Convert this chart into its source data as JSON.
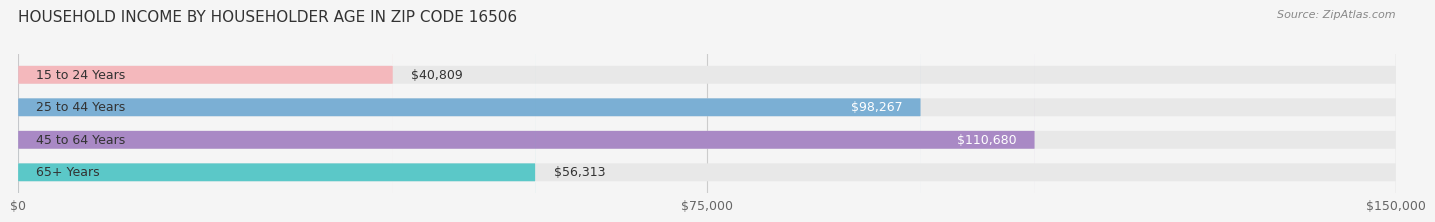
{
  "title": "HOUSEHOLD INCOME BY HOUSEHOLDER AGE IN ZIP CODE 16506",
  "source": "Source: ZipAtlas.com",
  "categories": [
    "15 to 24 Years",
    "25 to 44 Years",
    "45 to 64 Years",
    "65+ Years"
  ],
  "values": [
    40809,
    98267,
    110680,
    56313
  ],
  "bar_colors": [
    "#f4b8bc",
    "#7bafd4",
    "#a989c5",
    "#5bc8c8"
  ],
  "label_colors": [
    "#555555",
    "#ffffff",
    "#ffffff",
    "#555555"
  ],
  "bar_bg_color": "#e8e8e8",
  "xlim": [
    0,
    150000
  ],
  "xticks": [
    0,
    75000,
    150000
  ],
  "xtick_labels": [
    "$0",
    "$75,000",
    "$150,000"
  ],
  "bar_height": 0.55,
  "title_fontsize": 11,
  "source_fontsize": 8,
  "label_fontsize": 9,
  "ylabel_fontsize": 9,
  "xtick_fontsize": 9
}
